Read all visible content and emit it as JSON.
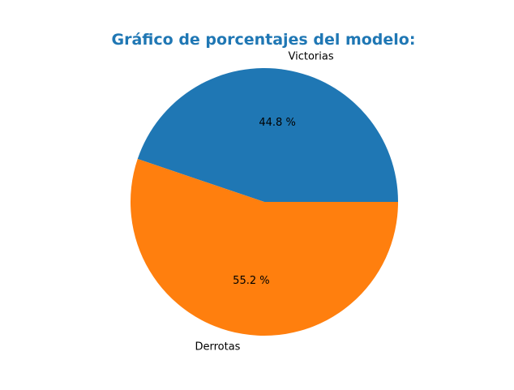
{
  "chart_data": {
    "type": "pie",
    "title": "Gráfico de porcentajes del modelo:",
    "title_color": "#1f77b4",
    "categories": [
      "Victorias",
      "Derrotas"
    ],
    "values": [
      44.8,
      55.2
    ],
    "value_labels": [
      "44.8 %",
      "55.2 %"
    ],
    "colors": [
      "#1f77b4",
      "#ff7f0e"
    ],
    "start_angle_deg": 0,
    "direction": "counterclockwise"
  }
}
